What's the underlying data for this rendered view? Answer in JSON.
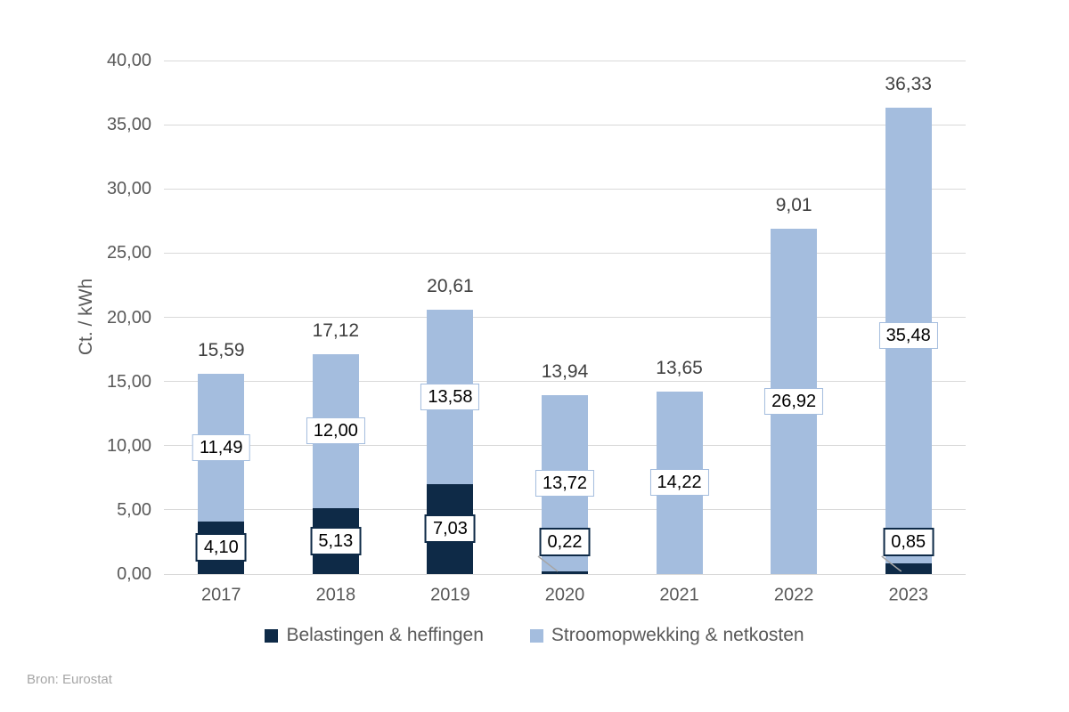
{
  "source_note": "Bron: Eurostat",
  "colors": {
    "grid": "#d9d9d9",
    "axis_text": "#595959",
    "total_text": "#404040",
    "source_text": "#a6a6a6",
    "leader_line": "#a6a6a6",
    "label_box_bg": "#ffffff",
    "taxes": "#0e2a47",
    "generation": "#a4bdde"
  },
  "chart_data": {
    "type": "bar",
    "stacked": true,
    "title": "",
    "xlabel": "",
    "ylabel": "Ct. / kWh",
    "ylim": [
      0,
      40
    ],
    "ytick_step": 5,
    "ytick_labels": [
      "40,00",
      "35,00",
      "30,00",
      "25,00",
      "20,00",
      "15,00",
      "10,00",
      "5,00",
      "0,00"
    ],
    "grid": true,
    "legend_position": "bottom",
    "categories": [
      "2017",
      "2018",
      "2019",
      "2020",
      "2021",
      "2022",
      "2023"
    ],
    "series": [
      {
        "name": "Belastingen & heffingen",
        "color": "#0e2a47",
        "values": [
          4.1,
          5.13,
          7.03,
          0.22,
          null,
          null,
          0.85
        ],
        "labels": [
          "4,10",
          "5,13",
          "7,03",
          "0,22",
          null,
          null,
          "0,85"
        ]
      },
      {
        "name": "Stroomopwekking & netkosten",
        "color": "#a4bdde",
        "values": [
          11.49,
          12.0,
          13.58,
          13.72,
          14.22,
          26.92,
          35.48
        ],
        "labels": [
          "11,49",
          "12,00",
          "13,58",
          "13,72",
          "14,22",
          "26,92",
          "35,48"
        ]
      }
    ],
    "totals": [
      15.59,
      17.12,
      20.61,
      13.94,
      13.65,
      9.01,
      36.33
    ],
    "total_labels": [
      "15,59",
      "17,12",
      "20,61",
      "13,94",
      "13,65",
      "9,01",
      "36,33"
    ]
  }
}
